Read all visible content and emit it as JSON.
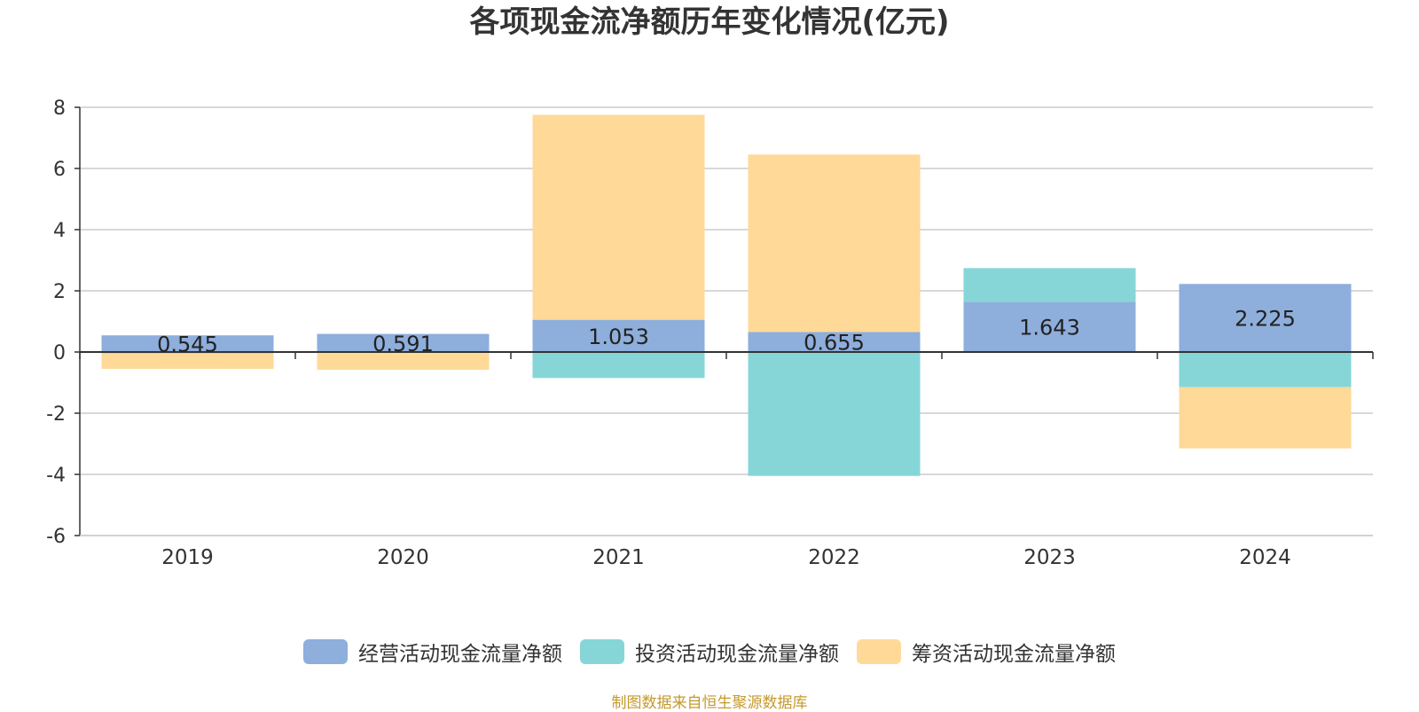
{
  "chart_data": {
    "type": "bar",
    "stacked": true,
    "title": "各项现金流净额历年变化情况(亿元)",
    "categories": [
      "2019",
      "2020",
      "2021",
      "2022",
      "2023",
      "2024"
    ],
    "ylim": [
      -6,
      8
    ],
    "yticks": [
      8,
      6,
      4,
      2,
      0,
      -2,
      -4,
      -6
    ],
    "grid": true,
    "legend_position": "bottom",
    "series": [
      {
        "name": "经营活动现金流量净额",
        "color": "#8eaedc",
        "values": [
          0.545,
          0.591,
          1.053,
          0.655,
          1.643,
          2.225
        ],
        "data_labels": [
          "0.545",
          "0.591",
          "1.053",
          "0.655",
          "1.643",
          "2.225"
        ]
      },
      {
        "name": "投资活动现金流量净额",
        "color": "#86d6d8",
        "values": [
          -0.05,
          -0.03,
          -0.85,
          -4.05,
          1.1,
          -1.15
        ]
      },
      {
        "name": "筹资活动现金流量净额",
        "color": "#fed998",
        "values": [
          -0.5,
          -0.55,
          6.7,
          5.8,
          0.0,
          -2.0
        ]
      }
    ]
  },
  "source_note": "制图数据来自恒生聚源数据库"
}
